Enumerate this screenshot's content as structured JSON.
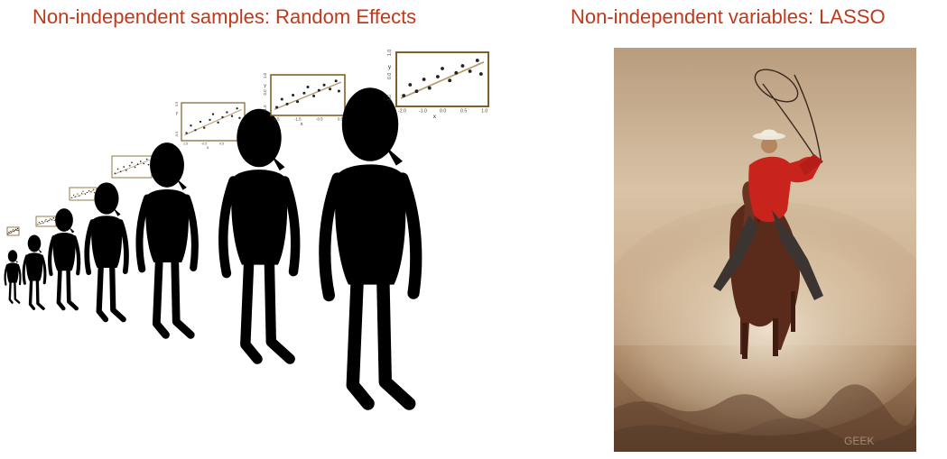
{
  "titles": {
    "left": "Non-independent samples: Random Effects",
    "right": "Non-independent variables: LASSO"
  },
  "colors": {
    "title": "#c0391b",
    "silhouette": "#000000",
    "plot_frame": "#7a5a20",
    "plot_line": "#b59a6a",
    "shirt": "#c8241c",
    "dust_light": "#e9d9c3",
    "dust_dark": "#8a6a4a"
  },
  "figures": {
    "axis_text_large": {
      "y_label": "y",
      "x_label": "x",
      "y_ticks": [
        "1.0",
        "0.0",
        "-1.0"
      ],
      "x_ticks": [
        "-2.0",
        "-1.0",
        "0.0",
        "0.5",
        "1.0"
      ]
    },
    "axis_text_medium": {
      "y_label": "y",
      "x_label": "x",
      "y_ticks": [
        "1.0",
        "0.0",
        "-1.0"
      ],
      "x_ticks": [
        "-2.5",
        "-1.5",
        "-0.5",
        "0.5"
      ]
    },
    "axis_text_small": {
      "y_label": "y",
      "x_label": "x",
      "y_ticks": [
        "0.5",
        "-0.5"
      ],
      "x_ticks": [
        "1.5",
        "-0.5",
        "0.5",
        "1.5"
      ]
    }
  },
  "photo": {
    "icons": [
      "cowboy-on-horse-icon",
      "lasso-rope-icon"
    ],
    "watermark": "GEEK"
  }
}
